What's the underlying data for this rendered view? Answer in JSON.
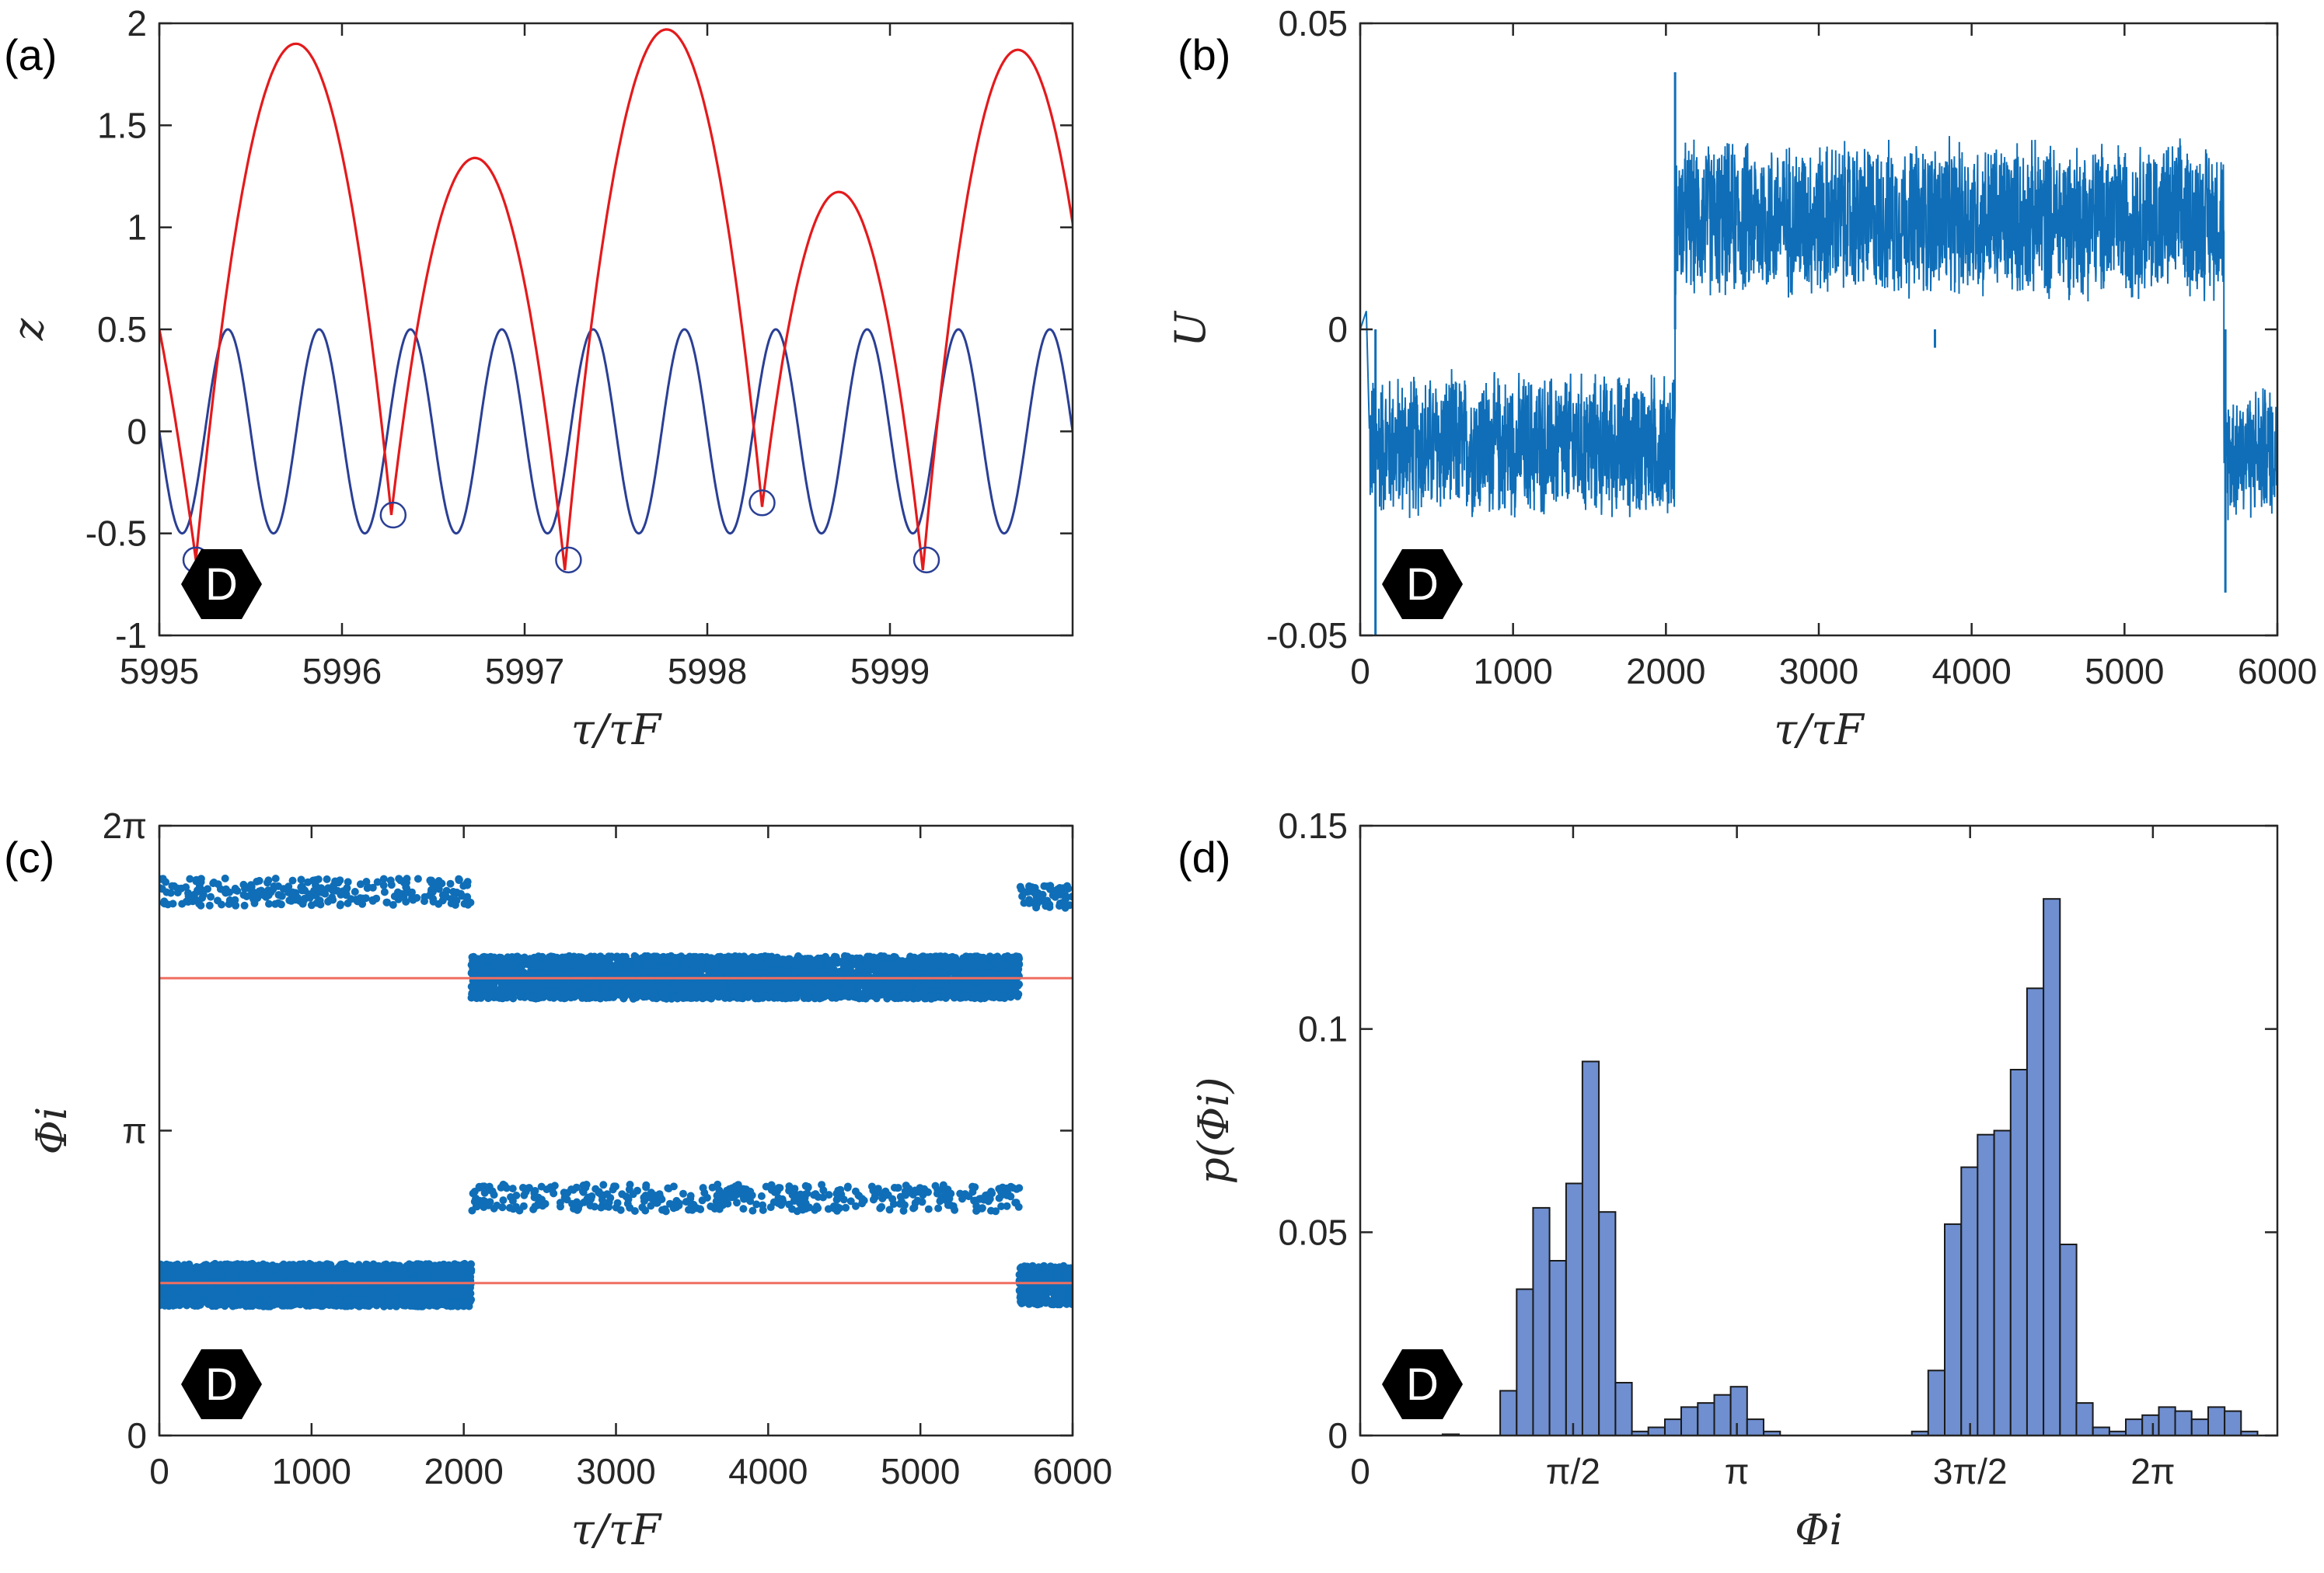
{
  "badge": "D",
  "colors": {
    "red": "#e41a1c",
    "navy": "#2a3f95",
    "blue": "#0f6eb7",
    "salmon": "#ef6f61",
    "hist": "#6f8fd0",
    "axis": "#262626"
  },
  "chart_data": [
    {
      "type": "line",
      "panel_label": "(a)",
      "xlabel": "τ/τF",
      "ylabel": "z",
      "xlim": [
        5995,
        6000
      ],
      "ylim": [
        -1,
        2
      ],
      "xticks": [
        5995,
        5996,
        5997,
        5998,
        5999
      ],
      "yticks": [
        -1,
        -0.5,
        0,
        0.5,
        1,
        1.5,
        2
      ],
      "ytick_labels": [
        "-1",
        "-0.5",
        "0",
        "0.5",
        "1",
        "1.5",
        "2"
      ],
      "series": [
        {
          "key": "drop",
          "color": "#e41a1c",
          "impacts": [
            5995.2,
            5996.27,
            5997.22,
            5998.3,
            5999.18
          ],
          "impact_z": [
            -0.63,
            -0.41,
            -0.68,
            -0.37,
            -0.68
          ],
          "peaks": [
            {
              "x": 5995.75,
              "z": 1.9
            },
            {
              "x": 5996.73,
              "z": 1.34
            },
            {
              "x": 5997.78,
              "z": 1.97
            },
            {
              "x": 5998.7,
              "z": 1.17
            },
            {
              "x": 5999.7,
              "z": 1.87
            }
          ],
          "start": {
            "x": 5995.0,
            "z": 0.5
          },
          "end": {
            "x": 6000.0,
            "z": 1.22
          }
        },
        {
          "key": "bath",
          "color": "#2a3f95",
          "amplitude": 0.5,
          "period": 0.5,
          "phase_x": 5995.0,
          "start_sign": -1
        }
      ],
      "impact_markers": [
        {
          "x": 5995.2,
          "z": -0.63
        },
        {
          "x": 5996.28,
          "z": -0.41
        },
        {
          "x": 5997.24,
          "z": -0.63
        },
        {
          "x": 5998.3,
          "z": -0.35
        },
        {
          "x": 5999.2,
          "z": -0.63
        }
      ]
    },
    {
      "type": "line",
      "panel_label": "(b)",
      "xlabel": "τ/τF",
      "ylabel": "U",
      "xlim": [
        0,
        6000
      ],
      "ylim": [
        -0.05,
        0.05
      ],
      "xticks": [
        0,
        1000,
        2000,
        3000,
        4000,
        5000,
        6000
      ],
      "yticks": [
        -0.05,
        0,
        0.05
      ],
      "ytick_labels": [
        "-0.05",
        "0",
        "0.05"
      ],
      "segments": [
        {
          "from": 60,
          "to": 2060,
          "mean": -0.019,
          "spread": 0.013
        },
        {
          "from": 2060,
          "to": 5650,
          "mean": 0.018,
          "spread": 0.014
        },
        {
          "from": 5650,
          "to": 6000,
          "mean": -0.02,
          "spread": 0.012
        }
      ],
      "events": [
        {
          "x": 100,
          "y": -0.05
        },
        {
          "x": 2060,
          "y": 0.042
        },
        {
          "x": 3760,
          "y": -0.003
        },
        {
          "x": 5660,
          "y": -0.043
        }
      ]
    },
    {
      "type": "scatter",
      "panel_label": "(c)",
      "xlabel": "τ/τF",
      "ylabel": "Φi",
      "xlim": [
        0,
        6000
      ],
      "ylim": [
        0,
        6.2832
      ],
      "xticks": [
        0,
        1000,
        2000,
        3000,
        4000,
        5000,
        6000
      ],
      "yticks": [
        0,
        3.1416,
        6.2832
      ],
      "ytick_labels": [
        "0",
        "π",
        "2π"
      ],
      "reference_lines": [
        1.5708,
        4.7124
      ],
      "clusters": [
        {
          "from": 0,
          "to": 2050,
          "center": 1.55,
          "spread": 0.22,
          "n": 2600
        },
        {
          "from": 0,
          "to": 2050,
          "center": 5.6,
          "spread": 0.14,
          "n": 260
        },
        {
          "from": 2050,
          "to": 5650,
          "center": 4.72,
          "spread": 0.22,
          "n": 3600
        },
        {
          "from": 2050,
          "to": 5650,
          "center": 2.45,
          "spread": 0.14,
          "n": 420
        },
        {
          "from": 5650,
          "to": 6000,
          "center": 1.55,
          "spread": 0.2,
          "n": 300
        },
        {
          "from": 5650,
          "to": 6000,
          "center": 5.55,
          "spread": 0.12,
          "n": 60
        }
      ]
    },
    {
      "type": "bar",
      "panel_label": "(d)",
      "xlabel": "Φi",
      "ylabel": "p(Φi)",
      "xlim": [
        0,
        6.2832
      ],
      "ylim": [
        0,
        0.15
      ],
      "xticks": [
        0,
        1.5708,
        3.1416,
        4.7124,
        6.2832
      ],
      "xtick_labels": [
        "0",
        "π/2",
        "π",
        "3π/2",
        "2π"
      ],
      "yticks": [
        0,
        0.05,
        0.1,
        0.15
      ],
      "ytick_labels": [
        "0",
        "0.05",
        "0.1",
        "0.15"
      ],
      "bin_width": 0.1257,
      "bins": [
        {
          "x": 0.691,
          "v": 0.0003
        },
        {
          "x": 1.131,
          "v": 0.011
        },
        {
          "x": 1.257,
          "v": 0.036
        },
        {
          "x": 1.382,
          "v": 0.056
        },
        {
          "x": 1.508,
          "v": 0.043
        },
        {
          "x": 1.634,
          "v": 0.062
        },
        {
          "x": 1.759,
          "v": 0.092
        },
        {
          "x": 1.885,
          "v": 0.055
        },
        {
          "x": 2.011,
          "v": 0.013
        },
        {
          "x": 2.136,
          "v": 0.001
        },
        {
          "x": 2.262,
          "v": 0.002
        },
        {
          "x": 2.388,
          "v": 0.004
        },
        {
          "x": 2.513,
          "v": 0.007
        },
        {
          "x": 2.639,
          "v": 0.008
        },
        {
          "x": 2.765,
          "v": 0.01
        },
        {
          "x": 2.89,
          "v": 0.012
        },
        {
          "x": 3.016,
          "v": 0.004
        },
        {
          "x": 3.142,
          "v": 0.001
        },
        {
          "x": 4.273,
          "v": 0.001
        },
        {
          "x": 4.398,
          "v": 0.016
        },
        {
          "x": 4.524,
          "v": 0.052
        },
        {
          "x": 4.65,
          "v": 0.066
        },
        {
          "x": 4.775,
          "v": 0.074
        },
        {
          "x": 4.901,
          "v": 0.075
        },
        {
          "x": 5.027,
          "v": 0.09
        },
        {
          "x": 5.152,
          "v": 0.11
        },
        {
          "x": 5.278,
          "v": 0.132
        },
        {
          "x": 5.404,
          "v": 0.047
        },
        {
          "x": 5.529,
          "v": 0.008
        },
        {
          "x": 5.655,
          "v": 0.002
        },
        {
          "x": 5.781,
          "v": 0.001
        },
        {
          "x": 5.906,
          "v": 0.004
        },
        {
          "x": 6.032,
          "v": 0.005
        },
        {
          "x": 6.158,
          "v": 0.007
        },
        {
          "x": 6.283,
          "v": 0.006
        },
        {
          "x": 6.409,
          "v": 0.004
        },
        {
          "x": 6.535,
          "v": 0.007
        },
        {
          "x": 6.66,
          "v": 0.006
        },
        {
          "x": 6.786,
          "v": 0.001
        }
      ]
    }
  ]
}
